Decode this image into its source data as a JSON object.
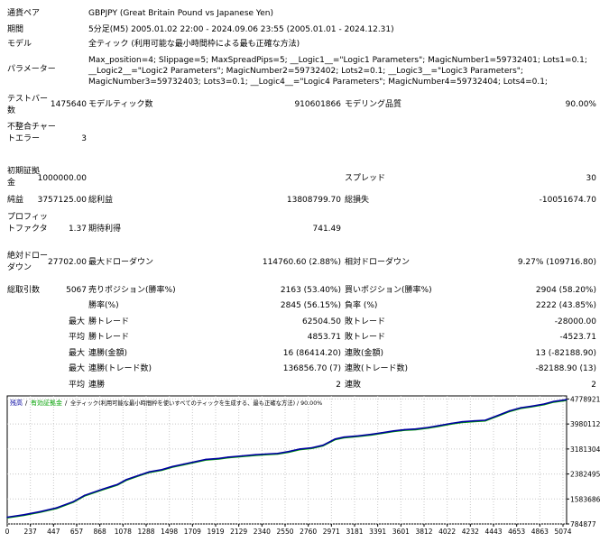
{
  "info": {
    "symbol_label": "通貨ペア",
    "symbol_value": "GBPJPY (Great Britain Pound vs Japanese Yen)",
    "period_label": "期間",
    "period_value": "5分足(M5) 2005.01.02 22:00 - 2024.09.06 23:55 (2005.01.01 - 2024.12.31)",
    "model_label": "モデル",
    "model_value": "全ティック (利用可能な最小時間枠による最も正確な方法)",
    "params_label": "パラメーター",
    "params_value": "Max_position=4; Slippage=5; MaxSpreadPips=5; __Logic1__=\"Logic1 Parameters\"; MagicNumber1=59732401; Lots1=0.1; __Logic2__=\"Logic2 Parameters\"; MagicNumber2=59732402; Lots2=0.1; __Logic3__=\"Logic3 Parameters\"; MagicNumber3=59732403; Lots3=0.1; __Logic4__=\"Logic4 Parameters\"; MagicNumber4=59732404; Lots4=0.1;"
  },
  "stats": {
    "bars_label": "テストバー数",
    "bars_value": "1475640",
    "model_ticks_label": "モデルティック数",
    "model_ticks_value": "910601866",
    "quality_label": "モデリング品質",
    "quality_value": "90.00%",
    "mismatch_label": "不整合チャートエラー",
    "mismatch_value": "3",
    "deposit_label": "初期証拠金",
    "deposit_value": "1000000.00",
    "spread_label": "スプレッド",
    "spread_value": "30",
    "net_label": "純益",
    "net_value": "3757125.00",
    "gross_profit_label": "総利益",
    "gross_profit_value": "13808799.70",
    "gross_loss_label": "総損失",
    "gross_loss_value": "-10051674.70",
    "pf_label": "プロフィットファクタ",
    "pf_value": "1.37",
    "expected_label": "期待利得",
    "expected_value": "741.49",
    "abs_dd_label": "絶対ドローダウン",
    "abs_dd_value": "27702.00",
    "max_dd_label": "最大ドローダウン",
    "max_dd_value": "114760.60 (2.88%)",
    "rel_dd_label": "相対ドローダウン",
    "rel_dd_value": "9.27% (109716.80)",
    "trades_label": "総取引数",
    "trades_value": "5067",
    "short_label": "売りポジション(勝率%)",
    "short_value": "2163 (53.40%)",
    "long_label": "買いポジション(勝率%)",
    "long_value": "2904 (58.20%)",
    "win_pct_label": "勝率(%)",
    "win_pct_value": "2845 (56.15%)",
    "loss_pct_label": "負率 (%)",
    "loss_pct_value": "2222 (43.85%)",
    "max_word": "最大",
    "avg_word": "平均",
    "largest_win_label": "勝トレード",
    "largest_win_value": "62504.50",
    "largest_loss_label": "敗トレード",
    "largest_loss_value": "-28000.00",
    "avg_win_label": "勝トレード",
    "avg_win_value": "4853.71",
    "avg_loss_label": "敗トレード",
    "avg_loss_value": "-4523.71",
    "cons_wins_money_label": "連勝(金額)",
    "cons_wins_money_value": "16 (86414.20)",
    "cons_loss_money_label": "連敗(金額)",
    "cons_loss_money_value": "13 (-82188.90)",
    "cons_profit_label": "連勝(トレード数)",
    "cons_profit_value": "136856.70 (7)",
    "cons_loss_label": "連敗(トレード数)",
    "cons_loss_value": "-82188.90 (13)",
    "avg_cons_wins_label": "連勝",
    "avg_cons_wins_value": "2",
    "avg_cons_loss_label": "連敗",
    "avg_cons_loss_value": "2"
  },
  "chart_data": {
    "type": "line",
    "legend_balance": "残高",
    "legend_sep1": "/",
    "legend_equity": "有効証拠金",
    "legend_sep2": "/",
    "legend_rest": "全ティック(利用可能な最小時間枠を使いすべてのティックを生成する、最も正確な方法) / 90.00%",
    "balance_color": "#0000a0",
    "equity_color": "#00a000",
    "grid": true,
    "x_ticks": [
      "0",
      "237",
      "447",
      "657",
      "868",
      "1078",
      "1288",
      "1498",
      "1709",
      "1919",
      "2129",
      "2340",
      "2550",
      "2760",
      "2971",
      "3181",
      "3391",
      "3601",
      "3812",
      "4022",
      "4232",
      "4443",
      "4653",
      "4863",
      "5074"
    ],
    "y_ticks": [
      "4778921",
      "3980112",
      "3181304",
      "2382495",
      "1583686",
      "784877"
    ],
    "xlim": [
      0,
      5067
    ],
    "ylim": [
      784877,
      4878000
    ],
    "x": [
      0,
      150,
      300,
      447,
      600,
      700,
      868,
      1000,
      1078,
      1200,
      1288,
      1400,
      1498,
      1600,
      1709,
      1800,
      1919,
      2000,
      2129,
      2250,
      2340,
      2450,
      2550,
      2650,
      2760,
      2860,
      2971,
      3050,
      3181,
      3300,
      3391,
      3500,
      3601,
      3700,
      3812,
      3900,
      4022,
      4120,
      4232,
      4330,
      4443,
      4550,
      4653,
      4750,
      4863,
      4950,
      5067
    ],
    "y": [
      1000000,
      1080000,
      1180000,
      1300000,
      1500000,
      1700000,
      1900000,
      2050000,
      2200000,
      2350000,
      2450000,
      2520000,
      2620000,
      2700000,
      2780000,
      2850000,
      2880000,
      2920000,
      2960000,
      3000000,
      3020000,
      3040000,
      3100000,
      3180000,
      3220000,
      3300000,
      3500000,
      3560000,
      3600000,
      3650000,
      3700000,
      3760000,
      3800000,
      3820000,
      3870000,
      3920000,
      4000000,
      4050000,
      4080000,
      4100000,
      4250000,
      4400000,
      4500000,
      4550000,
      4620000,
      4700000,
      4757125
    ]
  }
}
